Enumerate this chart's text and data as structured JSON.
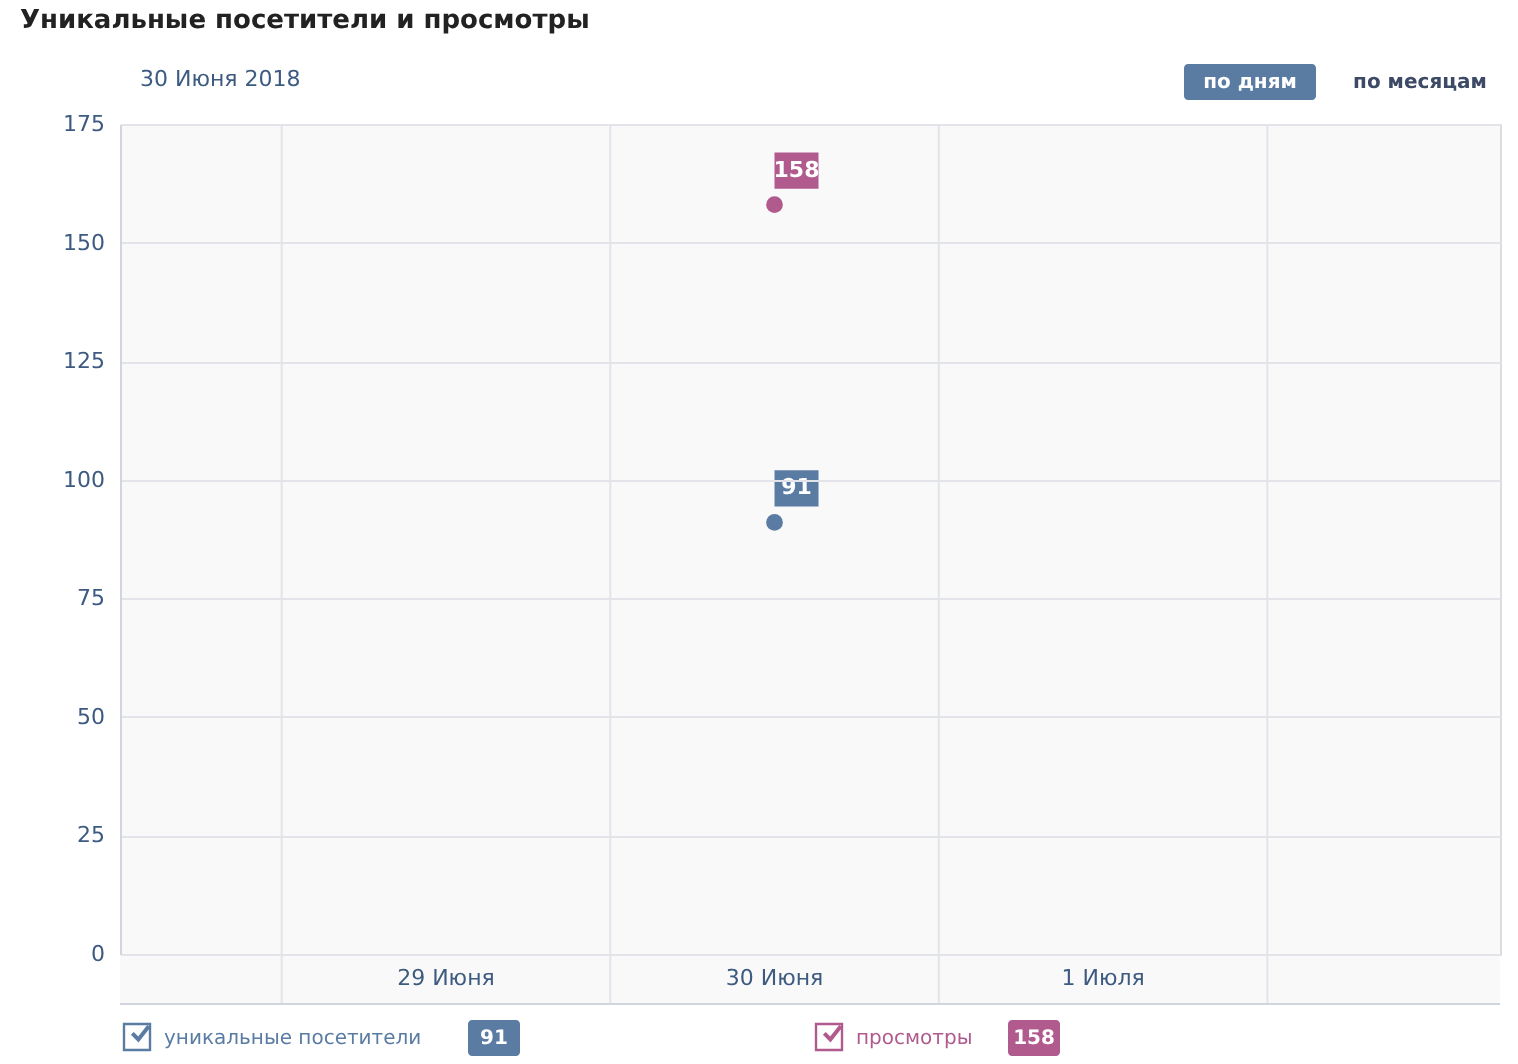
{
  "chart_data": {
    "type": "scatter",
    "title": "Уникальные посетители и просмотры",
    "subtitle": "30 Июня 2018",
    "annotations": [
      "по дням",
      "по месяцам",
      "91",
      "158"
    ],
    "categories": [
      "29 Июня",
      "30 Июня",
      "1 Июля"
    ],
    "series": [
      {
        "name": "уникальные посетители",
        "color": "#5a7ca3",
        "values": [
          null,
          91,
          null
        ]
      },
      {
        "name": "просмотры",
        "color": "#b05a8e",
        "values": [
          null,
          158,
          null
        ]
      }
    ],
    "ylim": [
      0,
      175
    ],
    "yticks": [
      0,
      25,
      50,
      75,
      100,
      125,
      150,
      175
    ],
    "grid": true,
    "legend": "bottom",
    "data_labels": true,
    "marker": "circle"
  }
}
